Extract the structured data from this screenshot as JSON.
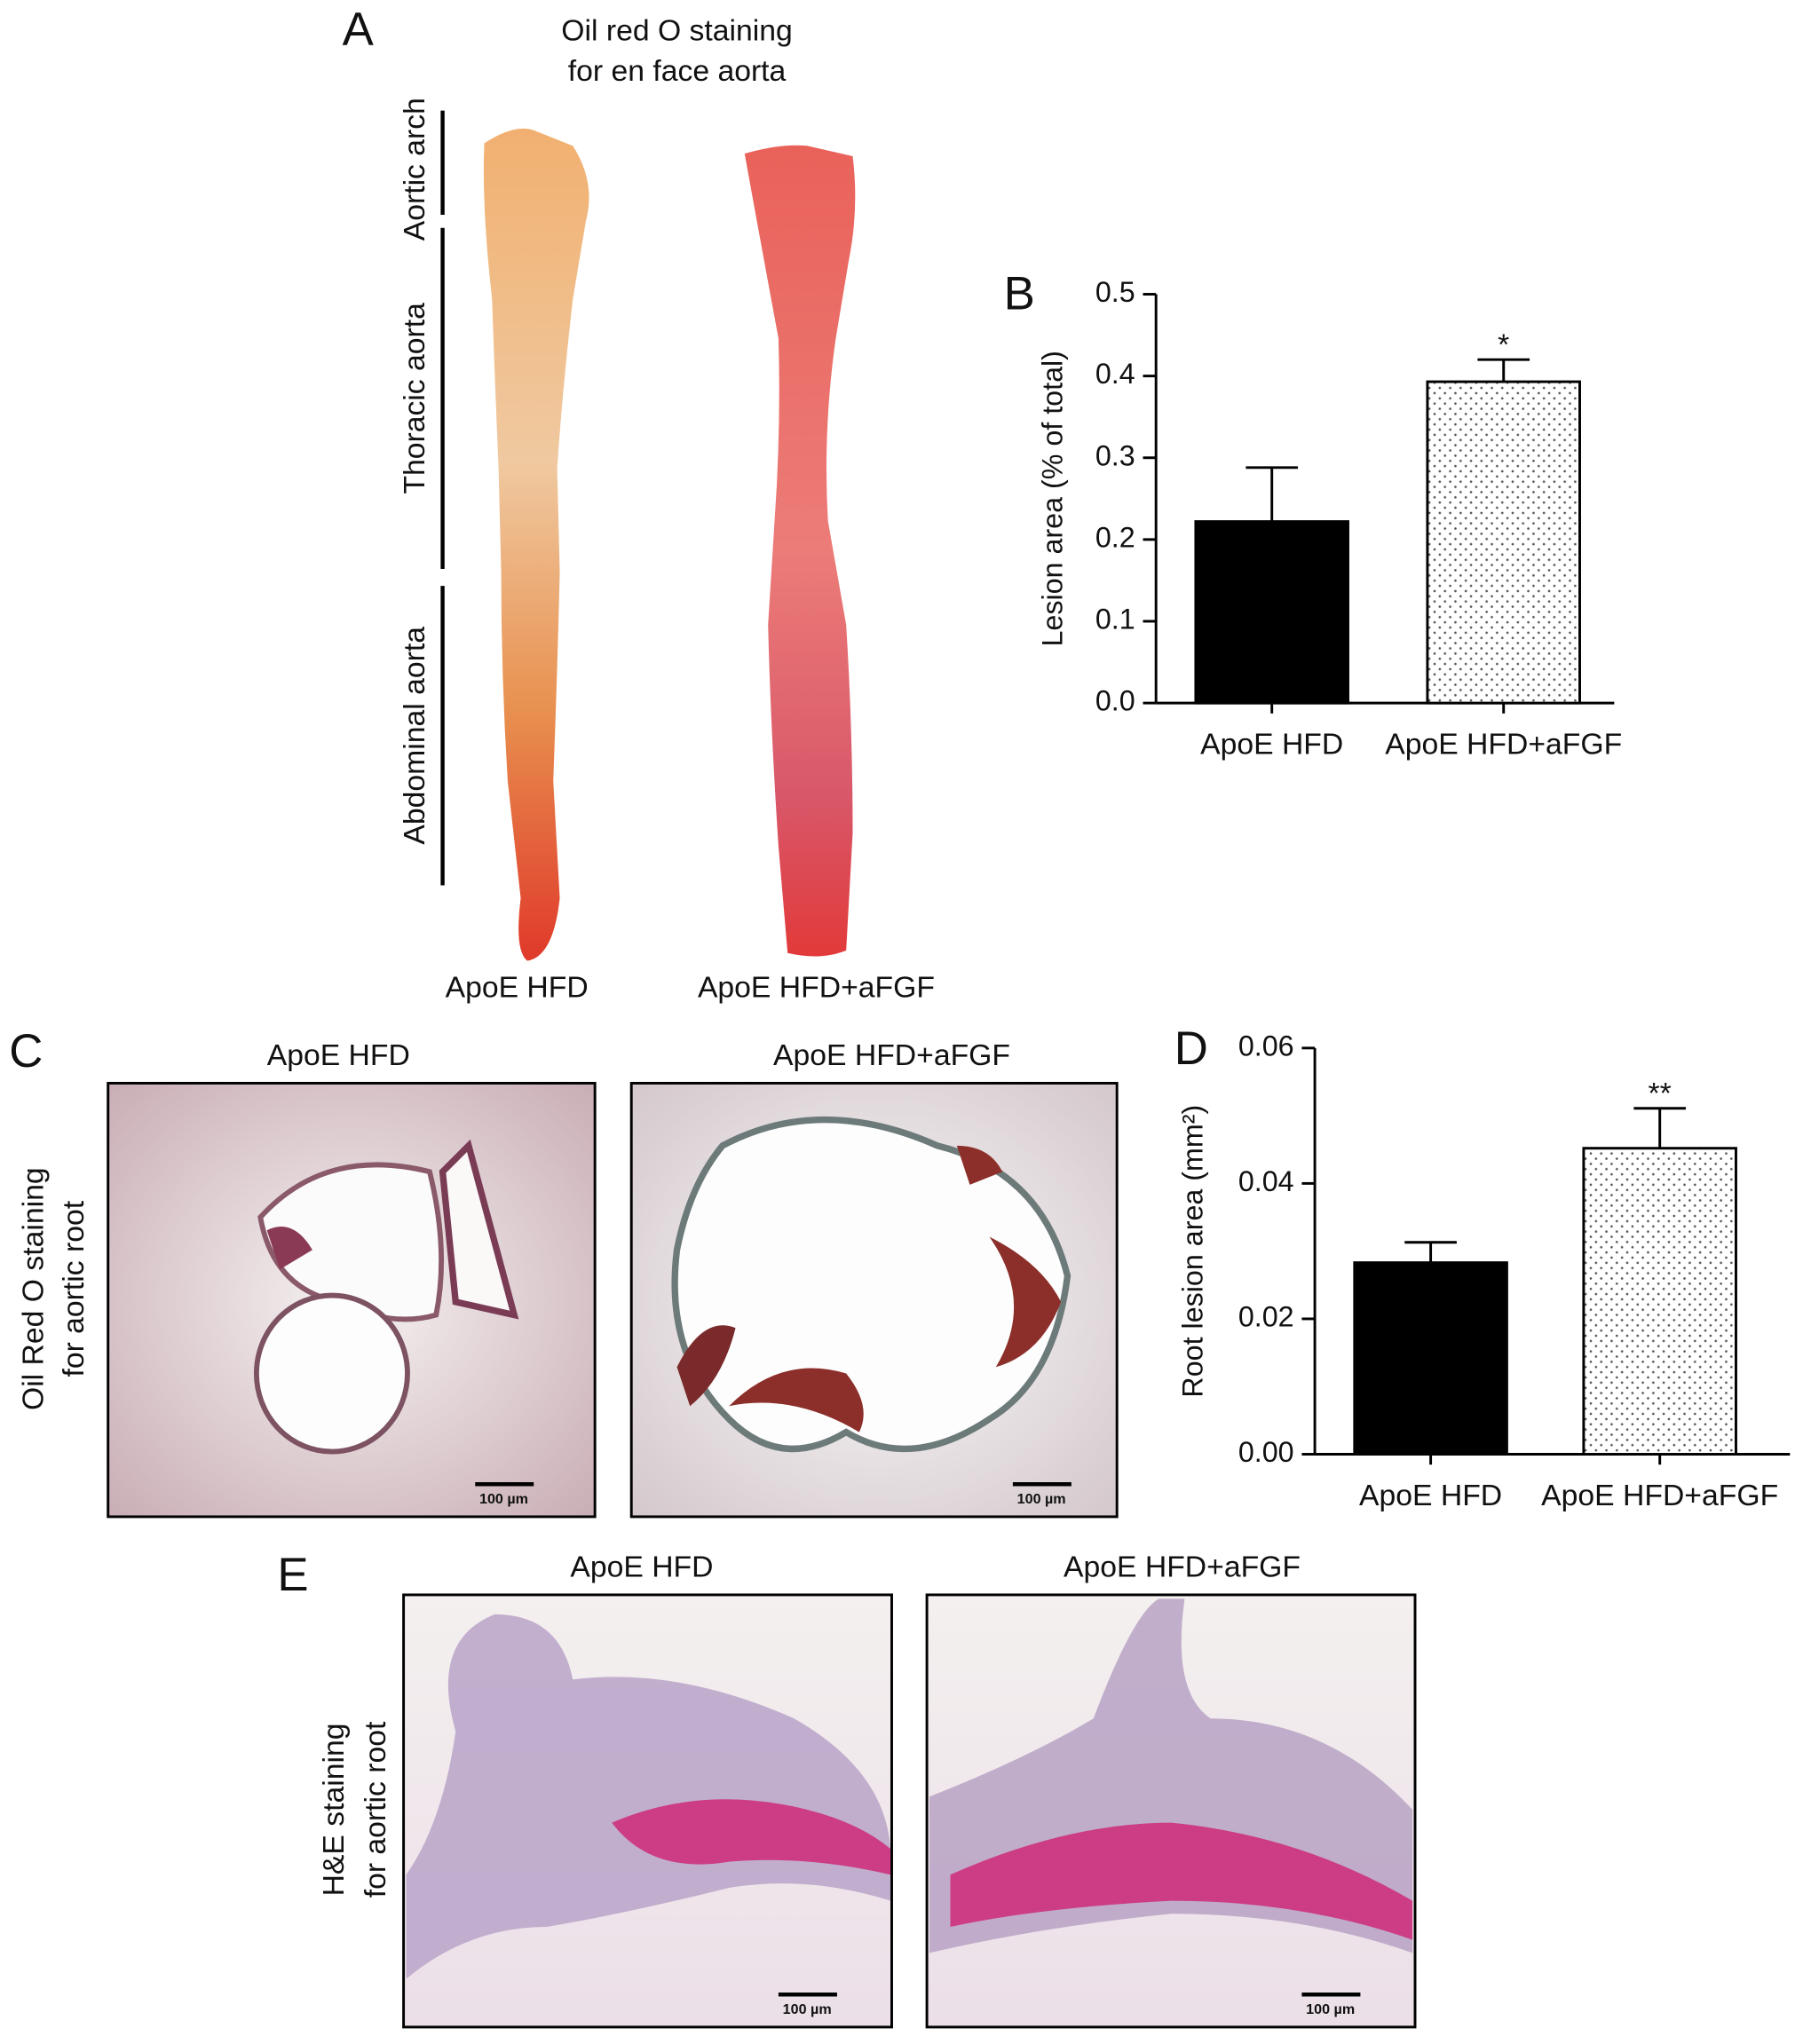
{
  "panel_labels": [
    "A",
    "B",
    "C",
    "D",
    "E"
  ],
  "panel_a": {
    "title": [
      "Oil red O staining",
      "for en face aorta"
    ],
    "regions": [
      "Aortic arch",
      "Thoracic aorta",
      "Abdominal aorta"
    ],
    "samples": [
      "ApoE HFD",
      "ApoE HFD+aFGF"
    ]
  },
  "chart_data": [
    {
      "type": "bar",
      "ylabel": "Lesion area (% of total)",
      "categories": [
        "ApoE HFD",
        "ApoE HFD+aFGF"
      ],
      "values": [
        0.222,
        0.393
      ],
      "errors": [
        0.066,
        0.027
      ],
      "colors": [
        "#000000",
        "#ffffff"
      ],
      "patterns": [
        "solid",
        "dots"
      ],
      "ylim": [
        0,
        0.5
      ],
      "yticks": [
        {
          "value": 0,
          "label": "0.0"
        },
        0.1,
        0.2,
        0.3,
        0.4,
        0.5
      ],
      "annotations": [
        {
          "x": "ApoE HFD+aFGF",
          "text": "*"
        }
      ]
    },
    {
      "type": "bar",
      "ylabel": "Root lesion area (mm²)",
      "categories": [
        "ApoE HFD",
        "ApoE HFD+aFGF"
      ],
      "values": [
        0.0283,
        0.0452
      ],
      "errors": [
        0.003,
        0.0059
      ],
      "colors": [
        "#000000",
        "#ffffff"
      ],
      "patterns": [
        "solid",
        "dots"
      ],
      "ylim": [
        0,
        0.06
      ],
      "yticks": [
        {
          "value": 0,
          "label": "0.00"
        },
        {
          "value": 0.02,
          "label": "0.02"
        },
        {
          "value": 0.04,
          "label": "0.04"
        },
        {
          "value": 0.06,
          "label": "0.06"
        }
      ],
      "annotations": [
        {
          "x": "ApoE HFD+aFGF",
          "text": "**"
        }
      ]
    }
  ],
  "panel_c": {
    "side_label": [
      "Oil Red O staining",
      "for aortic root"
    ],
    "samples": [
      "ApoE HFD",
      "ApoE HFD+aFGF"
    ],
    "scale_bars": [
      "100 µm",
      "100 µm"
    ]
  },
  "panel_e": {
    "side_label": [
      "H&E staining",
      "for aortic root"
    ],
    "samples": [
      "ApoE HFD",
      "ApoE HFD+aFGF"
    ],
    "scale_bars": [
      "100 µm",
      "100 µm"
    ]
  }
}
